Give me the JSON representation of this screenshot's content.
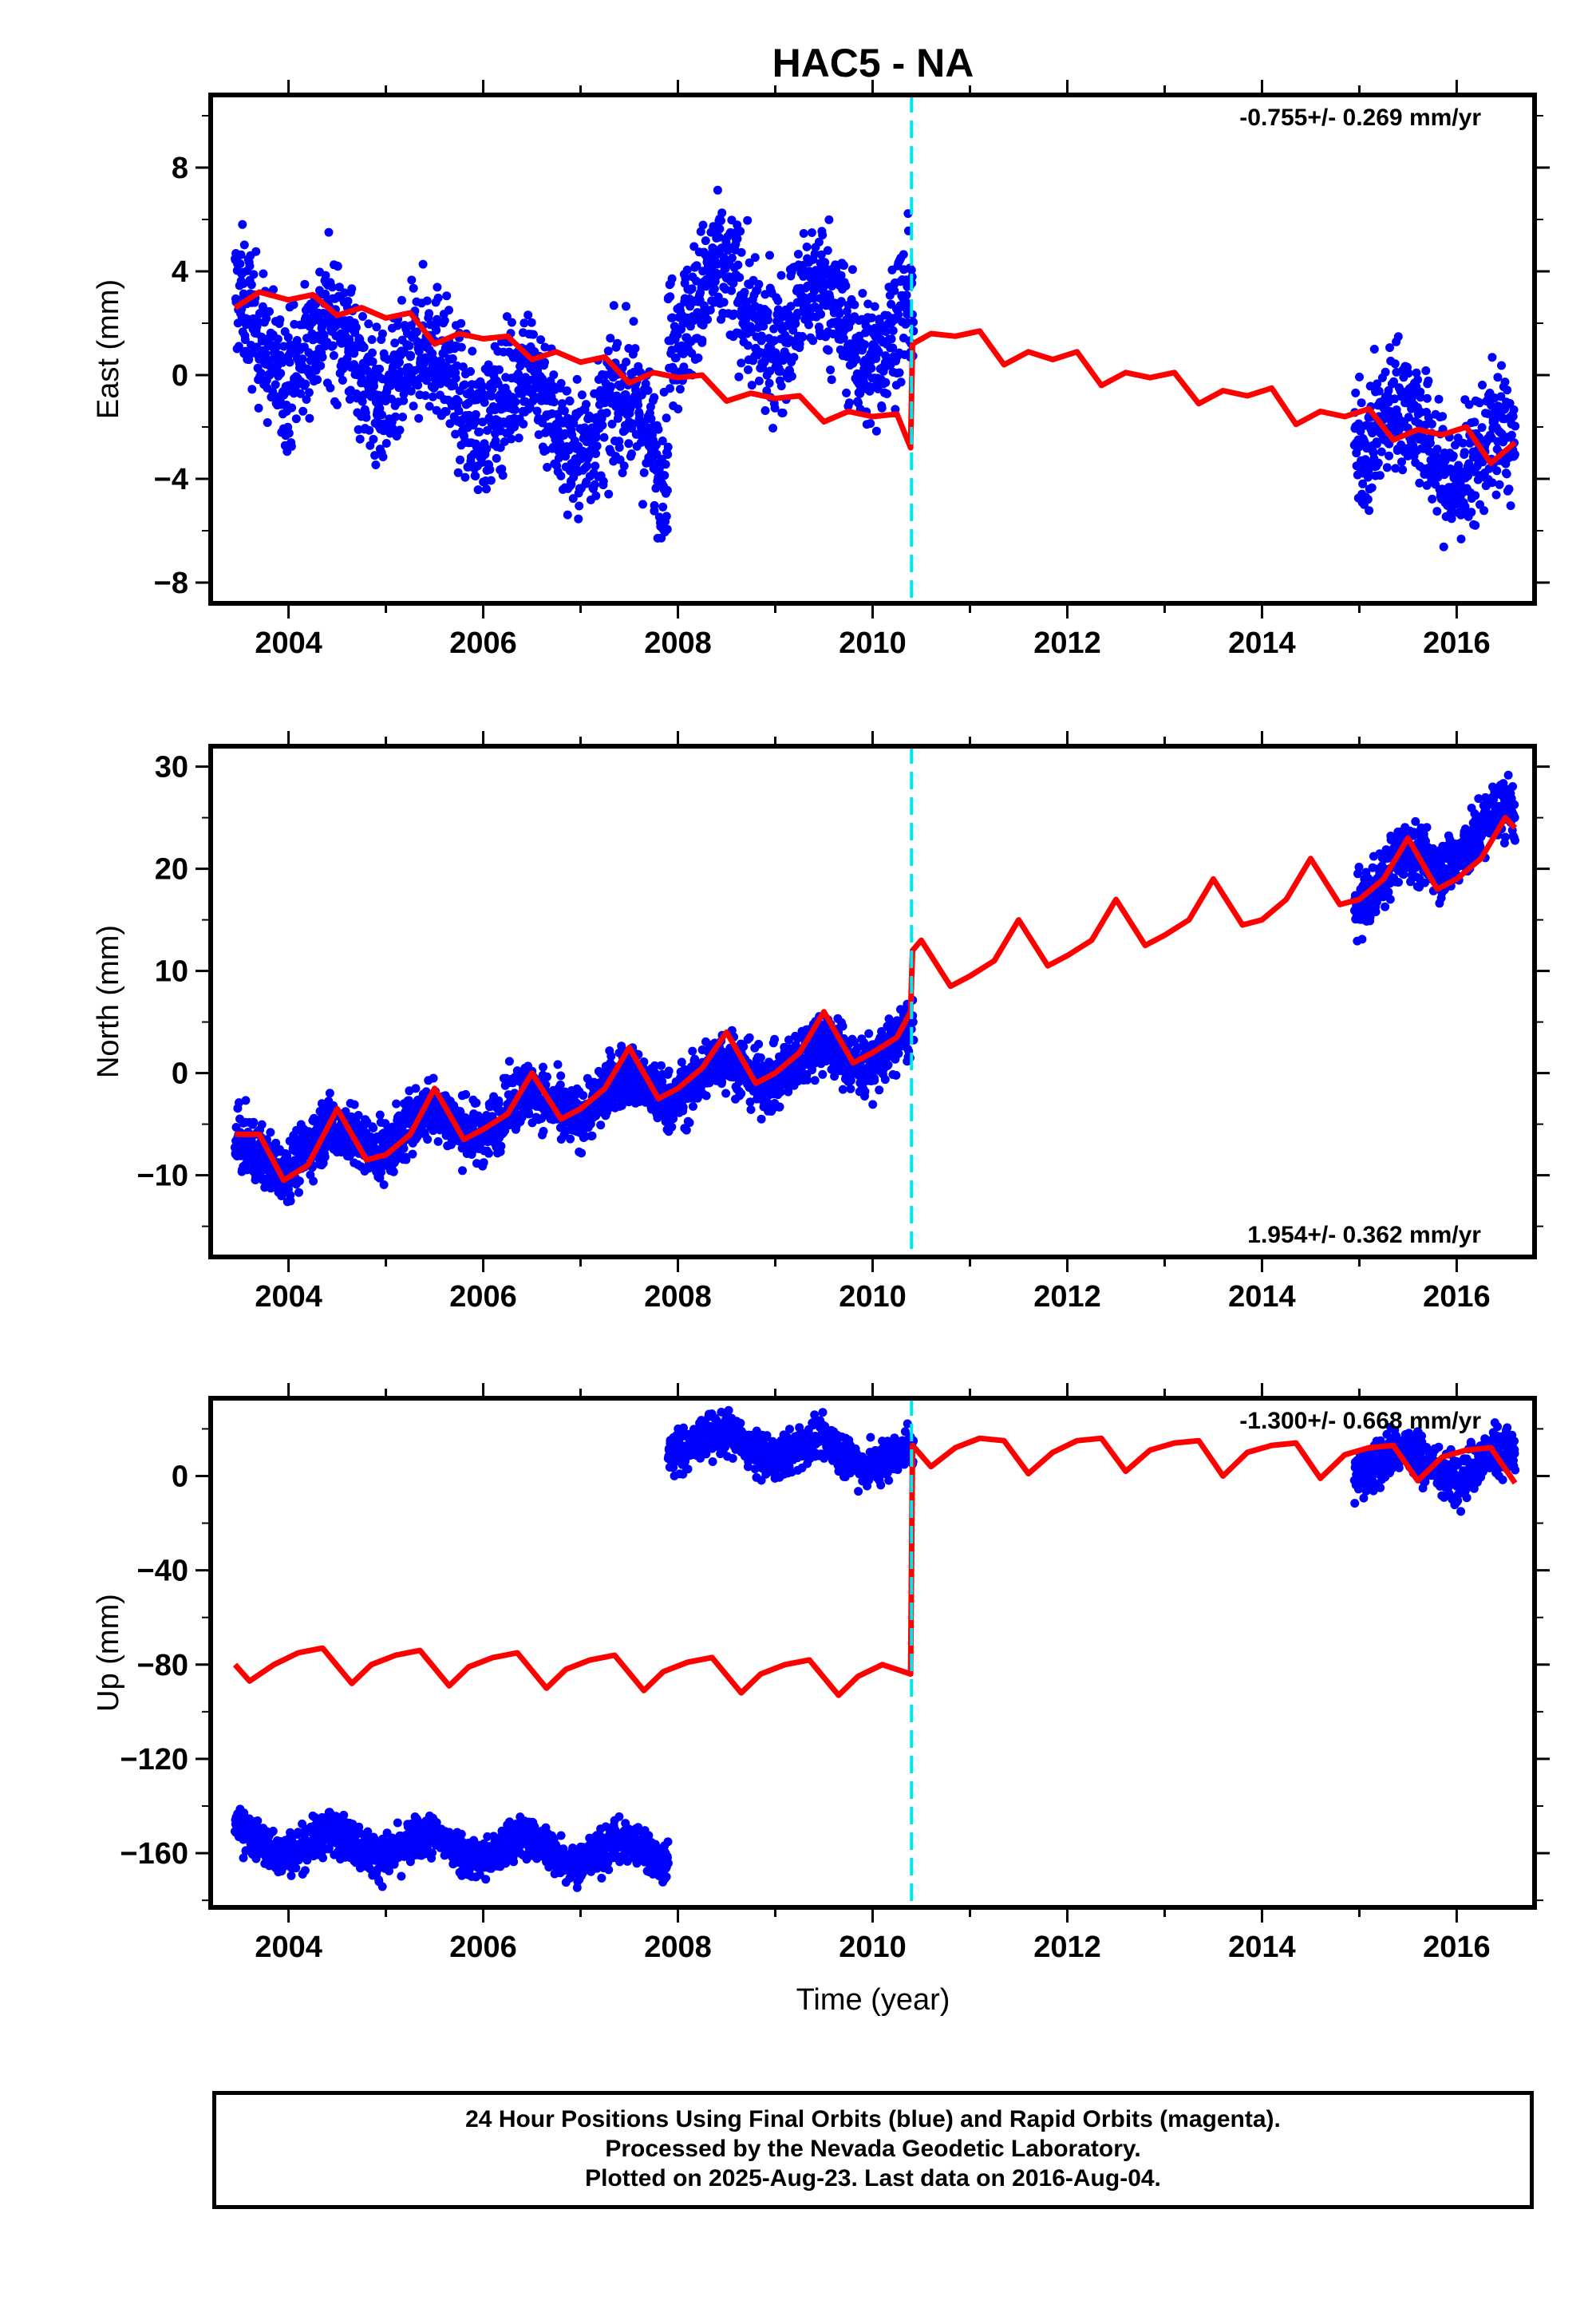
{
  "title": "HAC5 - NA",
  "xlabel": "Time (year)",
  "footer": {
    "line1": "24 Hour Positions Using Final Orbits (blue) and Rapid Orbits (magenta).",
    "line2": "Processed by the Nevada Geodetic Laboratory.",
    "line3": "Plotted on 2025-Aug-23. Last data on 2016-Aug-04."
  },
  "colors": {
    "data": "#0000ff",
    "model": "#ff0000",
    "break": "#00e5ee",
    "frame": "#000000"
  },
  "chart_data": [
    {
      "type": "scatter",
      "panel": "east",
      "ylabel": "East (mm)",
      "rate_label": "-0.755+/- 0.269 mm/yr",
      "rate_position": "top-right",
      "xlim": [
        2003.2,
        2016.8
      ],
      "ylim": [
        -8.8,
        10.8
      ],
      "xticks": [
        2004,
        2006,
        2008,
        2010,
        2012,
        2014,
        2016
      ],
      "yticks": [
        -8,
        -4,
        0,
        4,
        8
      ],
      "offset_epoch": 2010.4,
      "data_segments": [
        {
          "x": [
            2003.45,
            2007.9
          ],
          "trend": [
            1.8,
            -2.6
          ],
          "scatter": 1.7
        },
        {
          "x": [
            2007.9,
            2010.42
          ],
          "trend": [
            3.0,
            1.6
          ],
          "scatter": 1.7
        },
        {
          "x": [
            2014.95,
            2016.6
          ],
          "trend": [
            -1.8,
            -3.6
          ],
          "scatter": 1.6
        }
      ],
      "model": {
        "x": [
          2003.45,
          2003.7,
          2004.0,
          2004.25,
          2004.5,
          2004.75,
          2005.0,
          2005.25,
          2005.5,
          2005.75,
          2006.0,
          2006.25,
          2006.5,
          2006.75,
          2007.0,
          2007.25,
          2007.5,
          2007.75,
          2008.0,
          2008.25,
          2008.5,
          2008.75,
          2009.0,
          2009.25,
          2009.5,
          2009.75,
          2010.0,
          2010.25,
          2010.39,
          2010.41,
          2010.6,
          2010.85,
          2011.1,
          2011.35,
          2011.6,
          2011.85,
          2012.1,
          2012.35,
          2012.6,
          2012.85,
          2013.1,
          2013.35,
          2013.6,
          2013.85,
          2014.1,
          2014.35,
          2014.6,
          2014.85,
          2015.1,
          2015.35,
          2015.6,
          2015.85,
          2016.1,
          2016.35,
          2016.6
        ],
        "y": [
          2.6,
          3.2,
          2.9,
          3.1,
          2.3,
          2.6,
          2.2,
          2.4,
          1.2,
          1.6,
          1.4,
          1.5,
          0.6,
          0.9,
          0.5,
          0.7,
          -0.3,
          0.1,
          -0.1,
          0.0,
          -1.0,
          -0.7,
          -0.9,
          -0.8,
          -1.8,
          -1.4,
          -1.6,
          -1.5,
          -2.8,
          1.2,
          1.6,
          1.5,
          1.7,
          0.4,
          0.9,
          0.6,
          0.9,
          -0.4,
          0.1,
          -0.1,
          0.1,
          -1.1,
          -0.6,
          -0.8,
          -0.5,
          -1.9,
          -1.4,
          -1.6,
          -1.3,
          -2.5,
          -2.1,
          -2.3,
          -2.0,
          -3.4,
          -2.6
        ]
      }
    },
    {
      "type": "scatter",
      "panel": "north",
      "ylabel": "North (mm)",
      "rate_label": "1.954+/- 0.362 mm/yr",
      "rate_position": "bottom-right",
      "xlim": [
        2003.2,
        2016.8
      ],
      "ylim": [
        -18,
        32
      ],
      "xticks": [
        2004,
        2006,
        2008,
        2010,
        2012,
        2014,
        2016
      ],
      "yticks": [
        -10,
        0,
        10,
        20,
        30
      ],
      "offset_epoch": 2010.4,
      "data_segments": [
        {
          "x": [
            2003.45,
            2010.42
          ],
          "trend": [
            -8.5,
            3.0
          ],
          "scatter": 2.0
        },
        {
          "x": [
            2014.95,
            2016.6
          ],
          "trend": [
            17.5,
            25.0
          ],
          "scatter": 2.0
        }
      ],
      "model": {
        "x": [
          2003.45,
          2003.7,
          2003.95,
          2004.2,
          2004.5,
          2004.8,
          2005.0,
          2005.25,
          2005.5,
          2005.8,
          2006.0,
          2006.25,
          2006.5,
          2006.8,
          2007.0,
          2007.25,
          2007.5,
          2007.8,
          2008.0,
          2008.25,
          2008.5,
          2008.8,
          2009.0,
          2009.25,
          2009.5,
          2009.8,
          2010.0,
          2010.25,
          2010.39,
          2010.41,
          2010.5,
          2010.8,
          2011.0,
          2011.25,
          2011.5,
          2011.8,
          2012.0,
          2012.25,
          2012.5,
          2012.8,
          2013.0,
          2013.25,
          2013.5,
          2013.8,
          2014.0,
          2014.25,
          2014.5,
          2014.8,
          2015.0,
          2015.25,
          2015.5,
          2015.8,
          2016.0,
          2016.25,
          2016.5,
          2016.6
        ],
        "y": [
          -6.0,
          -6.0,
          -10.5,
          -9.0,
          -3.5,
          -8.5,
          -8.0,
          -6.0,
          -1.5,
          -6.5,
          -5.5,
          -4.0,
          0.0,
          -4.5,
          -3.5,
          -1.5,
          2.5,
          -2.5,
          -1.5,
          0.5,
          4.0,
          -1.0,
          0.0,
          2.0,
          6.0,
          1.0,
          2.0,
          3.5,
          6.0,
          12.0,
          13.0,
          8.5,
          9.5,
          11.0,
          15.0,
          10.5,
          11.5,
          13.0,
          17.0,
          12.5,
          13.5,
          15.0,
          19.0,
          14.5,
          15.0,
          17.0,
          21.0,
          16.5,
          17.0,
          19.0,
          23.0,
          18.0,
          19.0,
          21.0,
          25.0,
          24.0
        ]
      }
    },
    {
      "type": "scatter",
      "panel": "up",
      "ylabel": "Up (mm)",
      "rate_label": "-1.300+/- 0.668 mm/yr",
      "rate_position": "top-right",
      "xlim": [
        2003.2,
        2016.8
      ],
      "ylim": [
        -183,
        33
      ],
      "xticks": [
        2004,
        2006,
        2008,
        2010,
        2012,
        2014,
        2016
      ],
      "yticks": [
        -160,
        -120,
        -80,
        -40,
        0
      ],
      "offset_epoch": 2010.4,
      "data_segments": [
        {
          "x": [
            2003.45,
            2007.9
          ],
          "trend": [
            -155,
            -160
          ],
          "scatter": 6
        },
        {
          "x": [
            2007.9,
            2010.42
          ],
          "trend": [
            15,
            8
          ],
          "scatter": 6
        },
        {
          "x": [
            2014.95,
            2016.6
          ],
          "trend": [
            6,
            5
          ],
          "scatter": 7
        }
      ],
      "model": {
        "x": [
          2003.45,
          2003.6,
          2003.85,
          2004.1,
          2004.35,
          2004.65,
          2004.85,
          2005.1,
          2005.35,
          2005.65,
          2005.85,
          2006.1,
          2006.35,
          2006.65,
          2006.85,
          2007.1,
          2007.35,
          2007.65,
          2007.85,
          2008.1,
          2008.35,
          2008.65,
          2008.85,
          2009.1,
          2009.35,
          2009.65,
          2009.85,
          2010.1,
          2010.39,
          2010.41,
          2010.6,
          2010.85,
          2011.1,
          2011.35,
          2011.6,
          2011.85,
          2012.1,
          2012.35,
          2012.6,
          2012.85,
          2013.1,
          2013.35,
          2013.6,
          2013.85,
          2014.1,
          2014.35,
          2014.6,
          2014.85,
          2015.1,
          2015.35,
          2015.6,
          2015.85,
          2016.1,
          2016.35,
          2016.6
        ],
        "y": [
          -80,
          -87,
          -80,
          -75,
          -73,
          -88,
          -80,
          -76,
          -74,
          -89,
          -81,
          -77,
          -75,
          -90,
          -82,
          -78,
          -76,
          -91,
          -83,
          -79,
          -77,
          -92,
          -84,
          -80,
          -78,
          -93,
          -85,
          -80,
          -84,
          13,
          4,
          12,
          16,
          15,
          1,
          10,
          15,
          16,
          2,
          11,
          14,
          15,
          0,
          10,
          13,
          14,
          -1,
          9,
          12,
          13,
          -2,
          8,
          11,
          12,
          -3
        ]
      }
    }
  ]
}
